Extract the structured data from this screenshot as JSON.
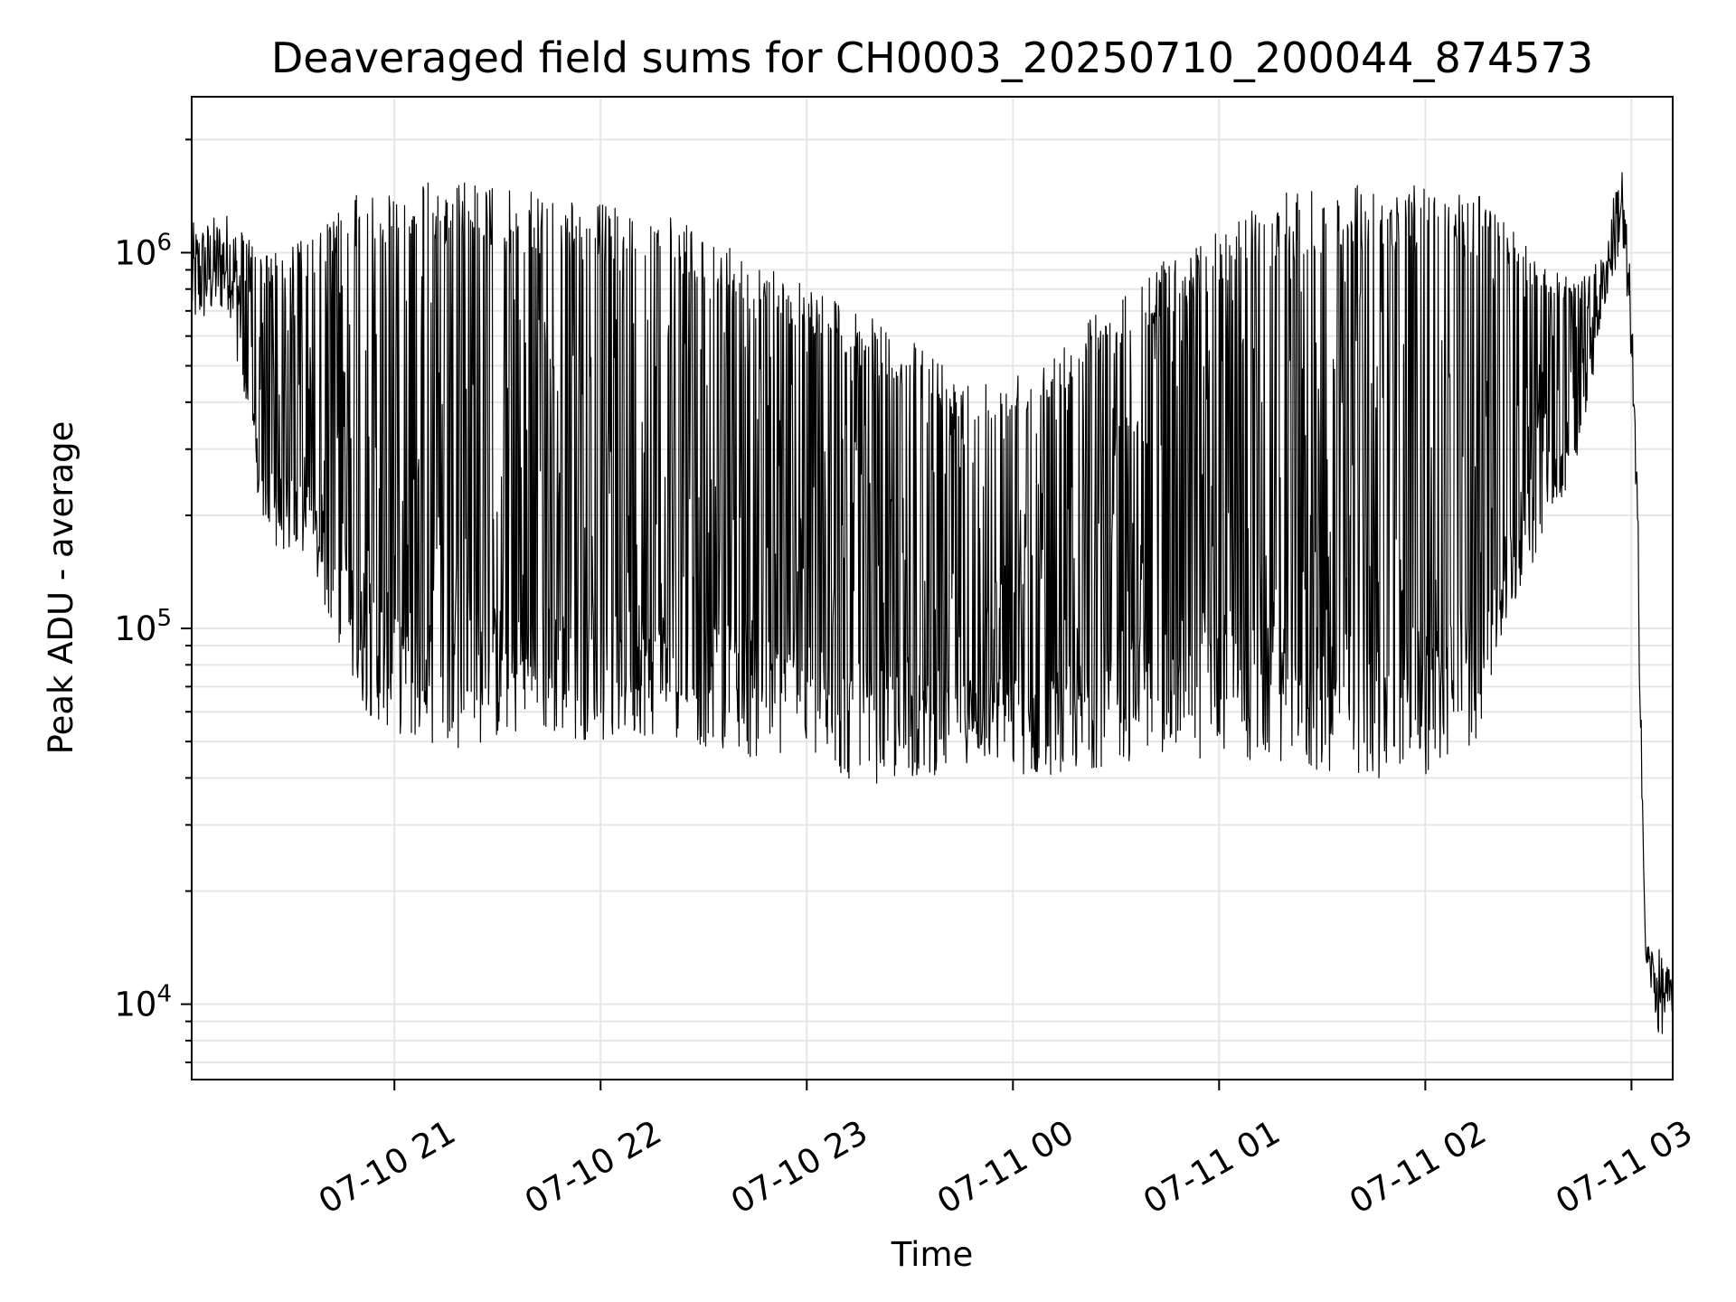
{
  "chart_data": {
    "type": "line",
    "title": "Deaveraged field sums for CH0003_20250710_200044_874573",
    "xlabel": "Time",
    "ylabel": "Peak ADU - average",
    "x_scale": "time",
    "y_scale": "log",
    "grid": true,
    "legend": "none",
    "xlim": [
      "07-10 20:01",
      "07-11 03:12"
    ],
    "ylim": [
      6300,
      2600000
    ],
    "x_ticks": [
      {
        "value": "07-10 21:00",
        "label": "07-10 21"
      },
      {
        "value": "07-10 22:00",
        "label": "07-10 22"
      },
      {
        "value": "07-10 23:00",
        "label": "07-10 23"
      },
      {
        "value": "07-11 00:00",
        "label": "07-11 00"
      },
      {
        "value": "07-11 01:00",
        "label": "07-11 01"
      },
      {
        "value": "07-11 02:00",
        "label": "07-11 02"
      },
      {
        "value": "07-11 03:00",
        "label": "07-11 03"
      }
    ],
    "y_ticks": [
      {
        "value": 10000,
        "base": "10",
        "exp": "4"
      },
      {
        "value": 100000,
        "base": "10",
        "exp": "5"
      },
      {
        "value": 1000000,
        "base": "10",
        "exp": "6"
      }
    ],
    "series": [
      {
        "color": "#000000",
        "envelope": [
          {
            "t": "07-10 20:01",
            "low": 600000,
            "high": 1200000
          },
          {
            "t": "07-10 20:12",
            "low": 700000,
            "high": 1300000
          },
          {
            "t": "07-10 20:22",
            "low": 170000,
            "high": 1000000
          },
          {
            "t": "07-10 20:35",
            "low": 150000,
            "high": 1100000
          },
          {
            "t": "07-10 20:50",
            "low": 60000,
            "high": 1450000
          },
          {
            "t": "07-10 21:05",
            "low": 50000,
            "high": 1550000
          },
          {
            "t": "07-10 21:20",
            "low": 48000,
            "high": 1550000
          },
          {
            "t": "07-10 21:40",
            "low": 52000,
            "high": 1450000
          },
          {
            "t": "07-10 22:00",
            "low": 50000,
            "high": 1350000
          },
          {
            "t": "07-10 22:20",
            "low": 52000,
            "high": 1250000
          },
          {
            "t": "07-10 22:40",
            "low": 45000,
            "high": 1000000
          },
          {
            "t": "07-10 23:00",
            "low": 45000,
            "high": 850000
          },
          {
            "t": "07-10 23:15",
            "low": 38000,
            "high": 700000
          },
          {
            "t": "07-10 23:35",
            "low": 40000,
            "high": 550000
          },
          {
            "t": "07-10 23:50",
            "low": 45000,
            "high": 450000
          },
          {
            "t": "07-11 00:05",
            "low": 40000,
            "high": 500000
          },
          {
            "t": "07-11 00:20",
            "low": 42000,
            "high": 650000
          },
          {
            "t": "07-11 00:40",
            "low": 45000,
            "high": 900000
          },
          {
            "t": "07-11 01:00",
            "low": 45000,
            "high": 1200000
          },
          {
            "t": "07-11 01:20",
            "low": 42000,
            "high": 1450000
          },
          {
            "t": "07-11 01:40",
            "low": 40000,
            "high": 1550000
          },
          {
            "t": "07-11 02:00",
            "low": 40000,
            "high": 1500000
          },
          {
            "t": "07-11 02:15",
            "low": 50000,
            "high": 1450000
          },
          {
            "t": "07-11 02:25",
            "low": 110000,
            "high": 1200000
          },
          {
            "t": "07-11 02:35",
            "low": 180000,
            "high": 900000
          },
          {
            "t": "07-11 02:45",
            "low": 280000,
            "high": 850000
          },
          {
            "t": "07-11 02:52",
            "low": 700000,
            "high": 1000000
          },
          {
            "t": "07-11 02:57",
            "low": 1000000,
            "high": 1900000
          },
          {
            "t": "07-11 03:00",
            "low": 500000,
            "high": 800000
          },
          {
            "t": "07-11 03:02",
            "low": 100000,
            "high": 200000
          },
          {
            "t": "07-11 03:04",
            "low": 13000,
            "high": 15000
          },
          {
            "t": "07-11 03:08",
            "low": 8000,
            "high": 14000
          },
          {
            "t": "07-11 03:12",
            "low": 9500,
            "high": 12000
          }
        ]
      }
    ]
  }
}
